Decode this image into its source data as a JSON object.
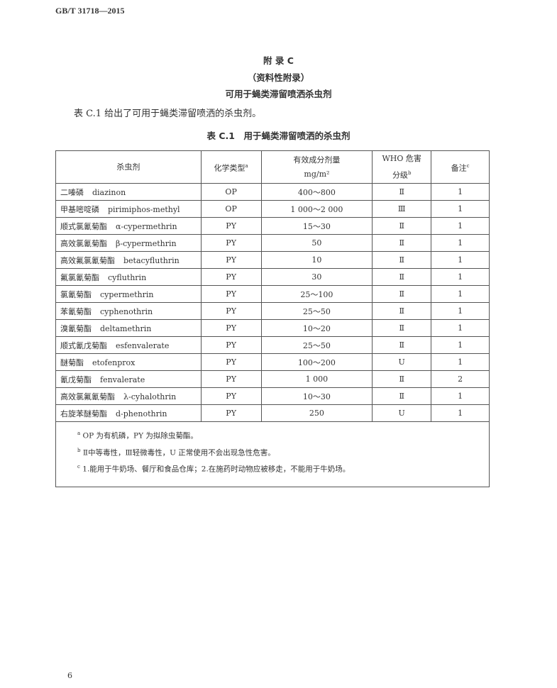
{
  "header": {
    "standard": "GB/T 31718—2015"
  },
  "appendix": {
    "title": "附 录 C",
    "type": "（资料性附录）",
    "subtitle": "可用于蝇类滞留喷洒杀虫剂"
  },
  "intro": "表 C.1 给出了可用于蝇类滞留喷洒的杀虫剂。",
  "table": {
    "caption": "表 C.1　用于蝇类滞留喷洒的杀虫剂",
    "headers": {
      "name": "杀虫剂",
      "type": "化学类型",
      "type_sup": "a",
      "dose": "有效成分剂量",
      "dose_unit": "mg/m²",
      "who": "WHO 危害",
      "who2": "分级",
      "who_sup": "b",
      "note": "备注",
      "note_sup": "c"
    },
    "rows": [
      {
        "cn": "二嗪磷",
        "en": "diazinon",
        "type": "OP",
        "dose": "400～800",
        "who": "Ⅱ",
        "note": "1"
      },
      {
        "cn": "甲基嘧啶磷",
        "en": "pirimiphos-methyl",
        "type": "OP",
        "dose": "1 000～2 000",
        "who": "Ⅲ",
        "note": "1"
      },
      {
        "cn": "顺式氯氰菊酯",
        "en": "α-cypermethrin",
        "type": "PY",
        "dose": "15～30",
        "who": "Ⅱ",
        "note": "1"
      },
      {
        "cn": "高效氯氰菊酯",
        "en": "β-cypermethrin",
        "type": "PY",
        "dose": "50",
        "who": "Ⅱ",
        "note": "1"
      },
      {
        "cn": "高效氟氯氰菊酯",
        "en": "betacyfluthrin",
        "type": "PY",
        "dose": "10",
        "who": "Ⅱ",
        "note": "1"
      },
      {
        "cn": "氟氯氰菊酯",
        "en": "cyfluthrin",
        "type": "PY",
        "dose": "30",
        "who": "Ⅱ",
        "note": "1"
      },
      {
        "cn": "氯氰菊酯",
        "en": "cypermethrin",
        "type": "PY",
        "dose": "25～100",
        "who": "Ⅱ",
        "note": "1"
      },
      {
        "cn": "苯氰菊酯",
        "en": "cyphenothrin",
        "type": "PY",
        "dose": "25～50",
        "who": "Ⅱ",
        "note": "1"
      },
      {
        "cn": "溴氰菊酯",
        "en": "deltamethrin",
        "type": "PY",
        "dose": "10～20",
        "who": "Ⅱ",
        "note": "1"
      },
      {
        "cn": "顺式氰戊菊酯",
        "en": "esfenvalerate",
        "type": "PY",
        "dose": "25～50",
        "who": "Ⅱ",
        "note": "1"
      },
      {
        "cn": "醚菊酯",
        "en": "etofenprox",
        "type": "PY",
        "dose": "100～200",
        "who": "U",
        "note": "1"
      },
      {
        "cn": "氰戊菊酯",
        "en": "fenvalerate",
        "type": "PY",
        "dose": "1 000",
        "who": "Ⅱ",
        "note": "2"
      },
      {
        "cn": "高效氯氟氰菊酯",
        "en": "λ-cyhalothrin",
        "type": "PY",
        "dose": "10～30",
        "who": "Ⅱ",
        "note": "1"
      },
      {
        "cn": "右旋苯醚菊酯",
        "en": "d-phenothrin",
        "type": "PY",
        "dose": "250",
        "who": "U",
        "note": "1"
      }
    ],
    "footnotes": [
      {
        "mark": "a",
        "text": "OP 为有机磷，PY 为拟除虫菊酯。"
      },
      {
        "mark": "b",
        "text": "Ⅱ中等毒性，Ⅲ轻微毒性，U 正常使用不会出现急性危害。"
      },
      {
        "mark": "c",
        "text": "1.能用于牛奶场、餐厅和食品仓库；2.在施药时动物应被移走，不能用于牛奶场。"
      }
    ]
  },
  "page_number": "6"
}
